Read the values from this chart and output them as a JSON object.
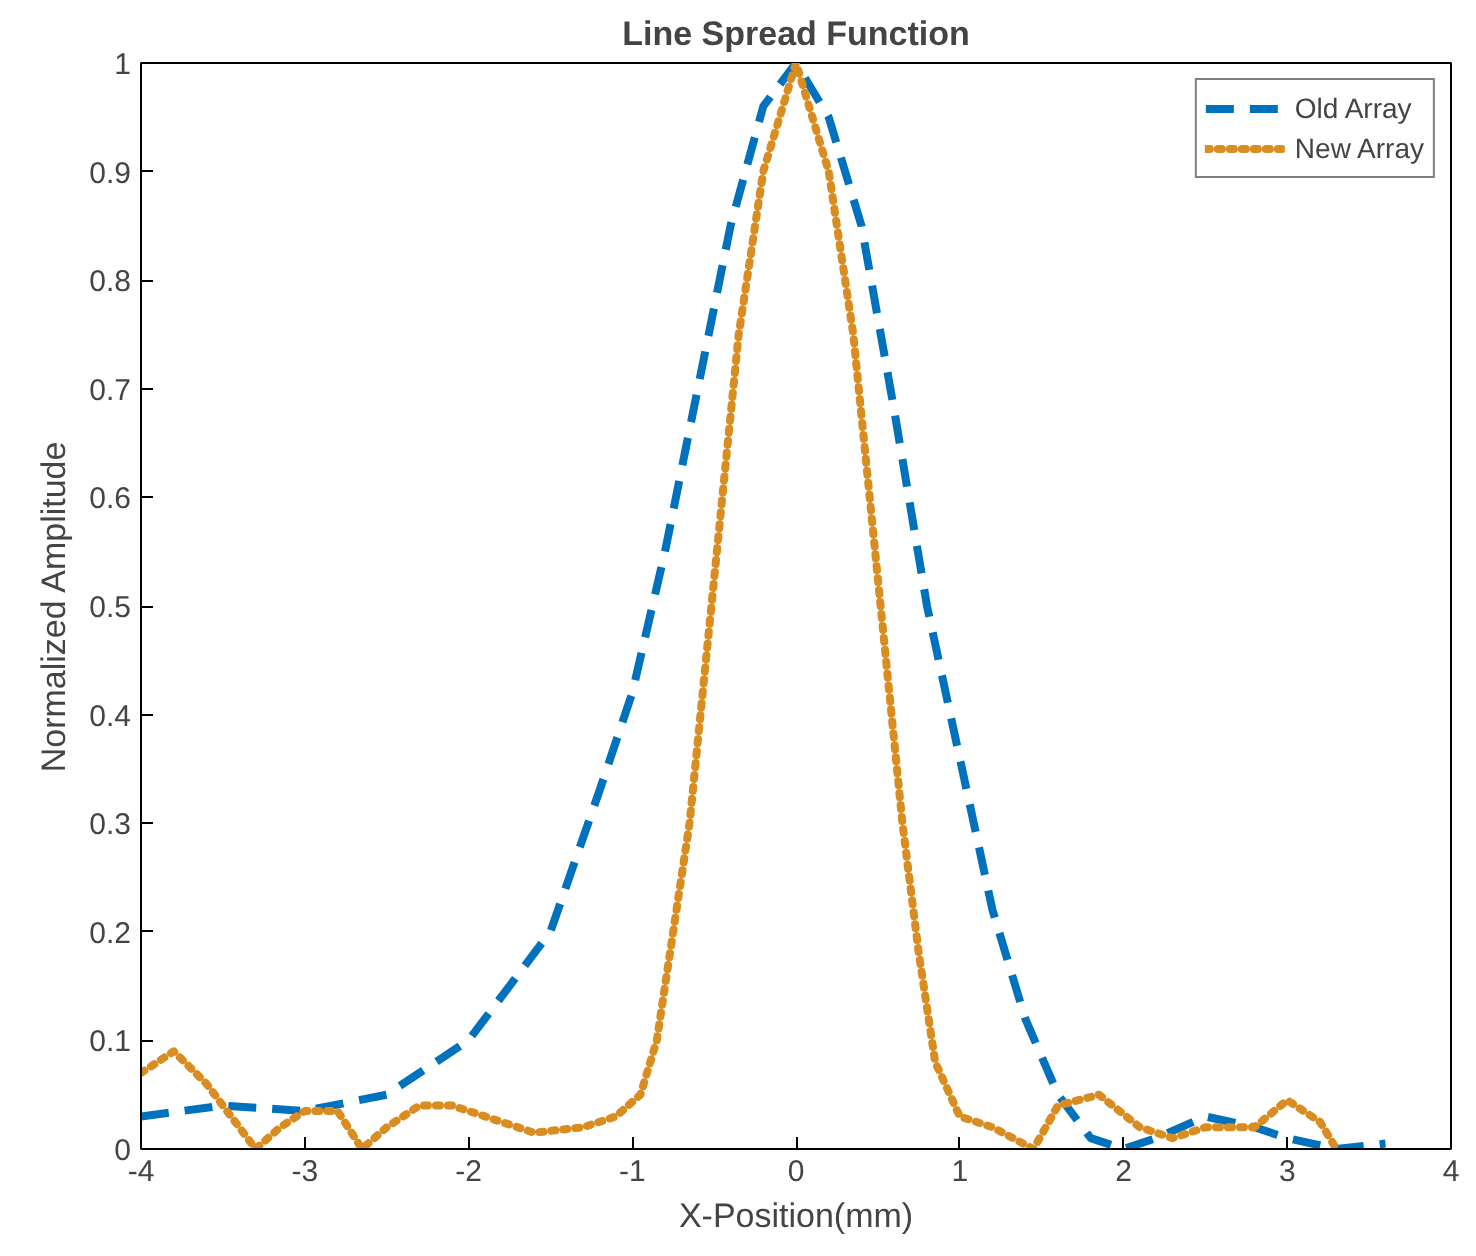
{
  "chart_data": {
    "type": "line",
    "title": "Line Spread Function",
    "xlabel": "X-Position(mm)",
    "ylabel": "Normalized Amplitude",
    "xlim": [
      -4,
      4
    ],
    "ylim": [
      0,
      1
    ],
    "xticks": [
      -4,
      -3,
      -2,
      -1,
      0,
      1,
      2,
      3,
      4
    ],
    "yticks": [
      0,
      0.1,
      0.2,
      0.3,
      0.4,
      0.5,
      0.6,
      0.7,
      0.8,
      0.9,
      1
    ],
    "grid": false,
    "legend": "top right",
    "series": [
      {
        "name": "Old Array",
        "color": "#0072bd",
        "line_style": "dashed",
        "x": [
          -4,
          -3.5,
          -3,
          -2.5,
          -2,
          -1.5,
          -1.2,
          -1,
          -0.8,
          -0.6,
          -0.4,
          -0.2,
          0,
          0.2,
          0.4,
          0.6,
          0.8,
          1,
          1.2,
          1.4,
          1.6,
          1.8,
          2,
          2.2,
          2.5,
          2.8,
          3,
          3.3,
          3.6
        ],
        "values": [
          0.03,
          0.04,
          0.035,
          0.05,
          0.1,
          0.2,
          0.33,
          0.42,
          0.55,
          0.7,
          0.85,
          0.96,
          1,
          0.95,
          0.85,
          0.68,
          0.5,
          0.36,
          0.22,
          0.12,
          0.05,
          0.01,
          0,
          0.01,
          0.03,
          0.02,
          0.01,
          0,
          0.005
        ]
      },
      {
        "name": "New Array",
        "color": "#d98c1f",
        "line_style": "dotted",
        "x": [
          -4,
          -3.8,
          -3.6,
          -3.45,
          -3.3,
          -3.15,
          -3,
          -2.8,
          -2.65,
          -2.5,
          -2.3,
          -2.1,
          -1.9,
          -1.6,
          -1.3,
          -1.1,
          -0.95,
          -0.85,
          -0.75,
          -0.65,
          -0.55,
          -0.45,
          -0.35,
          -0.2,
          0,
          0.2,
          0.35,
          0.45,
          0.55,
          0.65,
          0.75,
          0.85,
          1,
          1.2,
          1.45,
          1.6,
          1.85,
          2.1,
          2.3,
          2.5,
          2.8,
          3,
          3.2,
          3.3
        ],
        "values": [
          0.07,
          0.09,
          0.06,
          0.03,
          0,
          0.02,
          0.035,
          0.035,
          0,
          0.02,
          0.04,
          0.04,
          0.03,
          0.015,
          0.02,
          0.03,
          0.05,
          0.1,
          0.2,
          0.3,
          0.45,
          0.6,
          0.75,
          0.9,
          1,
          0.9,
          0.75,
          0.6,
          0.45,
          0.3,
          0.18,
          0.08,
          0.03,
          0.02,
          0,
          0.04,
          0.05,
          0.02,
          0.01,
          0.02,
          0.02,
          0.045,
          0.025,
          0
        ]
      }
    ]
  }
}
